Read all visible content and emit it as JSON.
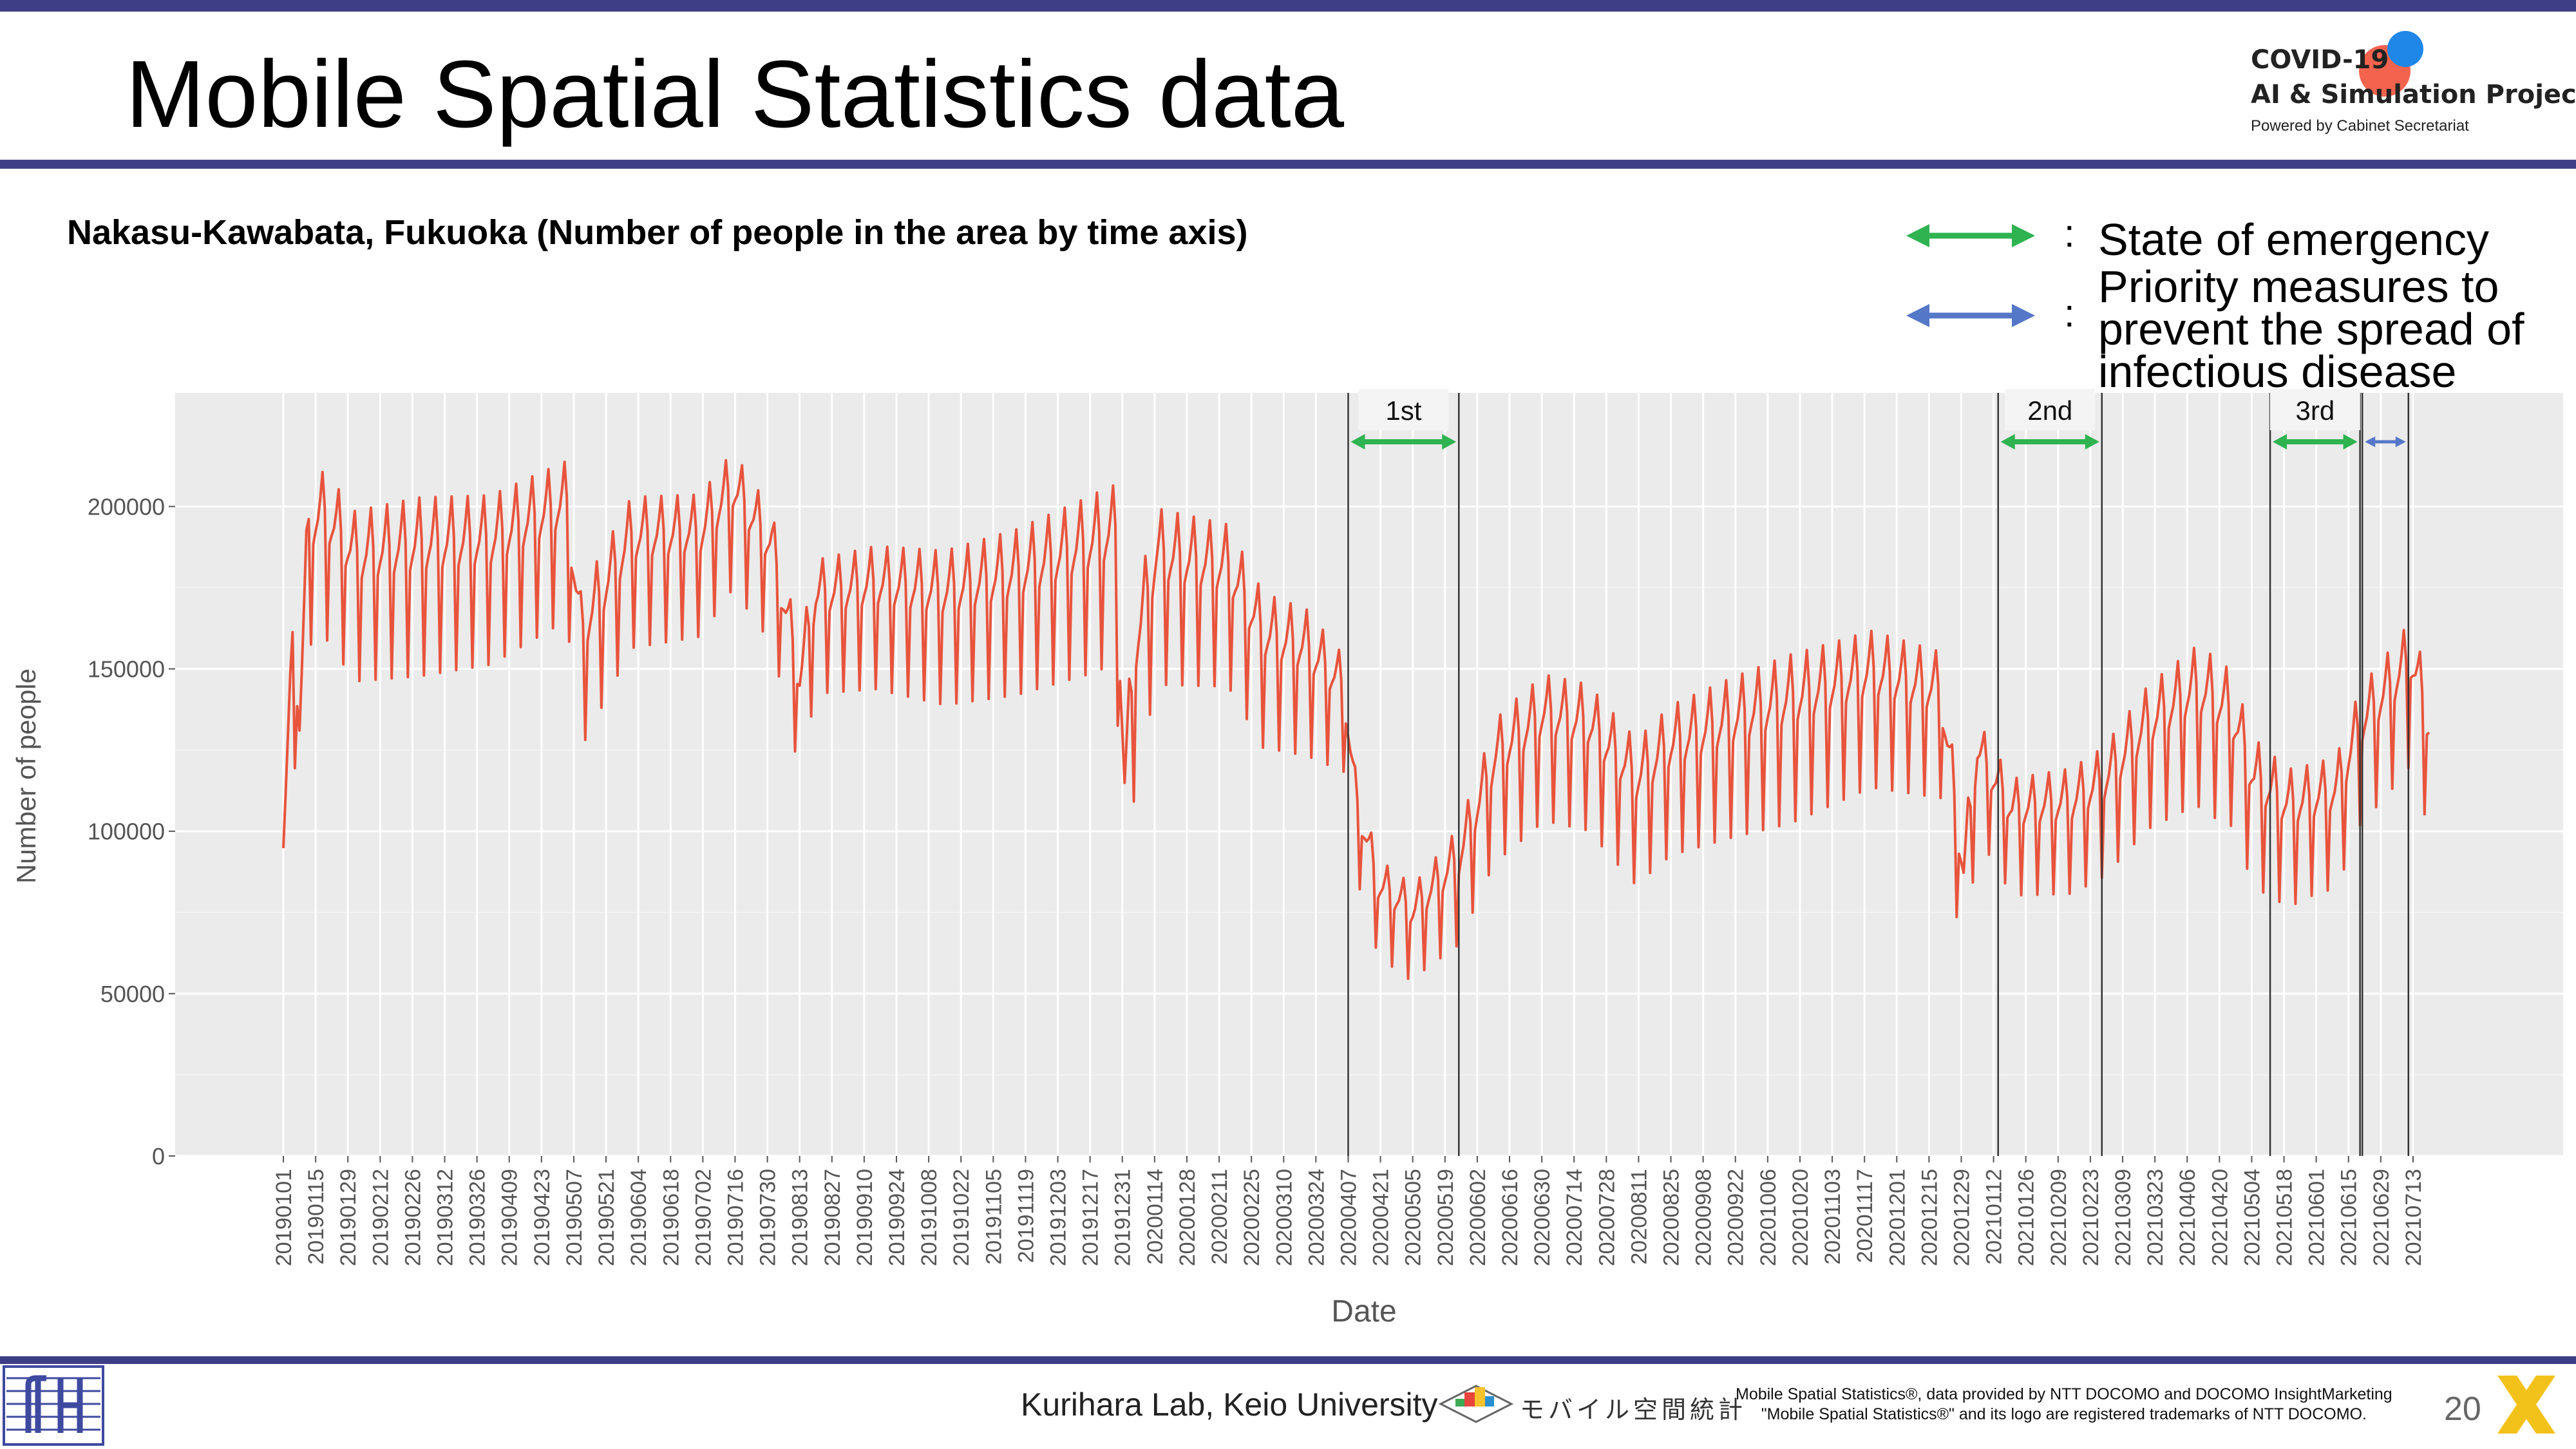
{
  "slide": {
    "title": "Mobile Spatial Statistics data",
    "subtitle": "Nakasu-Kawabata, Fukuoka (Number of people in the area by time axis)",
    "page_number": "20"
  },
  "logo": {
    "line1": "COVID-19",
    "line2": "AI & Simulation Project",
    "line3": "Powered by Cabinet Secretariat"
  },
  "legend": {
    "emergency": {
      "label": "State of emergency",
      "color": "#2eb350"
    },
    "priority": {
      "label_lines": [
        "Priority measures to",
        "prevent the spread of",
        "infectious disease"
      ],
      "color": "#5577c8"
    },
    "colon": ":"
  },
  "footer": {
    "lab": "Kurihara Lab, Keio University",
    "mobile_logo": "モバイル空間統計",
    "note_line1": "Mobile Spatial Statistics®, data provided by NTT DOCOMO and DOCOMO InsightMarketing",
    "note_line2": "\"Mobile Spatial Statistics®\" and its logo are registered trademarks of NTT DOCOMO."
  },
  "chart_data": {
    "type": "line",
    "xlabel": "Date",
    "ylabel": "Number of people",
    "ylim": [
      0,
      235000
    ],
    "yticks": [
      0,
      50000,
      100000,
      150000,
      200000
    ],
    "ytick_labels": [
      "0",
      "50000",
      "100000",
      "150000",
      "200000"
    ],
    "grid": true,
    "line_color": "#e8533c",
    "panel_color": "#ebebeb",
    "x_start": "2019-01-01",
    "x_end": "2021-07-20",
    "xticks": [
      "20190101",
      "20190115",
      "20190129",
      "20190212",
      "20190226",
      "20190312",
      "20190326",
      "20190409",
      "20190423",
      "20190507",
      "20190521",
      "20190604",
      "20190618",
      "20190702",
      "20190716",
      "20190730",
      "20190813",
      "20190827",
      "20190910",
      "20190924",
      "20191008",
      "20191022",
      "20191105",
      "20191119",
      "20191203",
      "20191217",
      "20191231",
      "20200114",
      "20200128",
      "20200211",
      "20200225",
      "20200310",
      "20200324",
      "20200407",
      "20200421",
      "20200505",
      "20200519",
      "20200602",
      "20200616",
      "20200630",
      "20200714",
      "20200728",
      "20200811",
      "20200825",
      "20200908",
      "20200922",
      "20201006",
      "20201020",
      "20201103",
      "20201117",
      "20201201",
      "20201215",
      "20201229",
      "20210112",
      "20210126",
      "20210209",
      "20210223",
      "20210309",
      "20210323",
      "20210406",
      "20210420",
      "20210504",
      "20210518",
      "20210601",
      "20210615",
      "20210629",
      "20210713"
    ],
    "series": [
      {
        "points": [
          [
            "2019-01-01",
            93000
          ],
          [
            "2019-01-05",
            158000
          ],
          [
            "2019-01-08",
            125000
          ],
          [
            "2019-01-12",
            185000
          ],
          [
            "2019-01-19",
            188000
          ],
          [
            "2019-02-01",
            175000
          ],
          [
            "2019-03-01",
            178000
          ],
          [
            "2019-04-01",
            180000
          ],
          [
            "2019-05-04",
            192000
          ],
          [
            "2019-05-10",
            152000
          ],
          [
            "2019-06-01",
            182000
          ],
          [
            "2019-07-01",
            184000
          ],
          [
            "2019-07-15",
            198000
          ],
          [
            "2019-08-01",
            180000
          ],
          [
            "2019-08-13",
            140000
          ],
          [
            "2019-08-20",
            165000
          ],
          [
            "2019-09-15",
            168000
          ],
          [
            "2019-10-15",
            165000
          ],
          [
            "2019-11-15",
            170000
          ],
          [
            "2019-12-15",
            178000
          ],
          [
            "2019-12-28",
            182000
          ],
          [
            "2020-01-01",
            105000
          ],
          [
            "2020-01-06",
            148000
          ],
          [
            "2020-01-15",
            175000
          ],
          [
            "2020-02-15",
            172000
          ],
          [
            "2020-03-01",
            152000
          ],
          [
            "2020-03-20",
            148000
          ],
          [
            "2020-04-05",
            138000
          ],
          [
            "2020-04-10",
            105000
          ],
          [
            "2020-04-20",
            78000
          ],
          [
            "2020-05-05",
            70000
          ],
          [
            "2020-05-25",
            85000
          ],
          [
            "2020-06-10",
            115000
          ],
          [
            "2020-07-01",
            128000
          ],
          [
            "2020-07-20",
            125000
          ],
          [
            "2020-08-10",
            108000
          ],
          [
            "2020-08-25",
            118000
          ],
          [
            "2020-09-20",
            125000
          ],
          [
            "2020-10-20",
            132000
          ],
          [
            "2020-11-20",
            140000
          ],
          [
            "2020-12-20",
            135000
          ],
          [
            "2020-12-30",
            80000
          ],
          [
            "2021-01-05",
            118000
          ],
          [
            "2021-01-20",
            100000
          ],
          [
            "2021-02-15",
            102000
          ],
          [
            "2021-03-01",
            108000
          ],
          [
            "2021-03-20",
            125000
          ],
          [
            "2021-04-10",
            135000
          ],
          [
            "2021-04-25",
            128000
          ],
          [
            "2021-05-05",
            108000
          ],
          [
            "2021-05-20",
            100000
          ],
          [
            "2021-06-10",
            105000
          ],
          [
            "2021-06-20",
            125000
          ],
          [
            "2021-07-05",
            138000
          ],
          [
            "2021-07-12",
            145000
          ],
          [
            "2021-07-20",
            125000
          ]
        ]
      }
    ],
    "weekly_amplitude": [
      [
        "2019-01-05",
        50000
      ],
      [
        "2019-03-01",
        55000
      ],
      [
        "2019-08-10",
        40000
      ],
      [
        "2019-12-20",
        55000
      ],
      [
        "2020-01-10",
        55000
      ],
      [
        "2020-03-20",
        45000
      ],
      [
        "2020-04-15",
        30000
      ],
      [
        "2020-05-10",
        30000
      ],
      [
        "2020-06-15",
        45000
      ],
      [
        "2020-08-15",
        45000
      ],
      [
        "2020-10-15",
        52000
      ],
      [
        "2020-12-20",
        45000
      ],
      [
        "2021-01-10",
        35000
      ],
      [
        "2021-03-01",
        40000
      ],
      [
        "2021-04-15",
        50000
      ],
      [
        "2021-06-01",
        40000
      ],
      [
        "2021-07-15",
        45000
      ]
    ],
    "periods": [
      {
        "label": "1st",
        "type": "emergency",
        "start": "2020-04-07",
        "end": "2020-05-25"
      },
      {
        "label": "2nd",
        "type": "emergency",
        "start": "2021-01-14",
        "end": "2021-02-28"
      },
      {
        "label": "3rd",
        "type": "emergency",
        "start": "2021-05-12",
        "end": "2021-06-20"
      },
      {
        "label": "",
        "type": "priority",
        "start": "2021-06-21",
        "end": "2021-07-11"
      }
    ]
  }
}
